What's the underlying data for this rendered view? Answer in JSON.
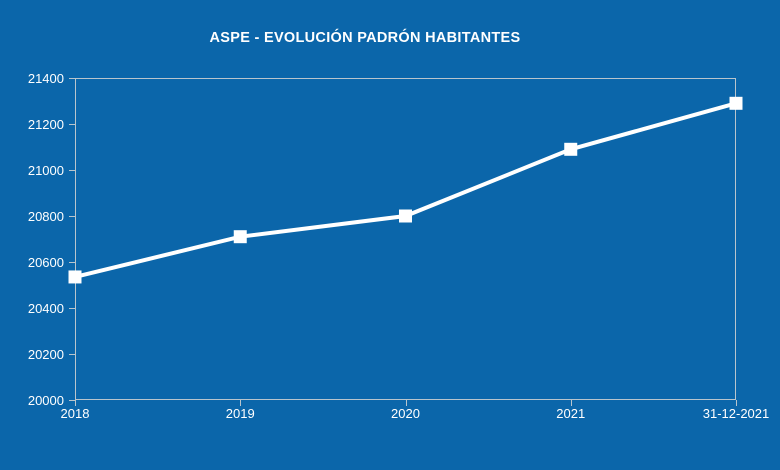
{
  "header": {
    "title": "ASPE - EVOLUCIÓN PADRÓN HABITANTES"
  },
  "colors": {
    "background": "#0b66aa",
    "axis": "#b9c5cd",
    "series_line": "#ffffff",
    "text": "#ffffff"
  },
  "chart_data": {
    "type": "line",
    "title": "ASPE - EVOLUCIÓN PADRÓN HABITANTES",
    "categories": [
      "2018",
      "2019",
      "2020",
      "2021",
      "31-12-2021"
    ],
    "series": [
      {
        "name": "Padrón habitantes",
        "values": [
          20535,
          20710,
          20800,
          21090,
          21290
        ]
      }
    ],
    "xlabel": "",
    "ylabel": "",
    "ylim": [
      20000,
      21400
    ],
    "ytick_step": 200,
    "yticks": [
      20000,
      20200,
      20400,
      20600,
      20800,
      21000,
      21200,
      21400
    ],
    "grid": false,
    "legend": false,
    "marker": "square",
    "marker_color": "#ffffff",
    "line_width": 4,
    "plot_border": true
  }
}
